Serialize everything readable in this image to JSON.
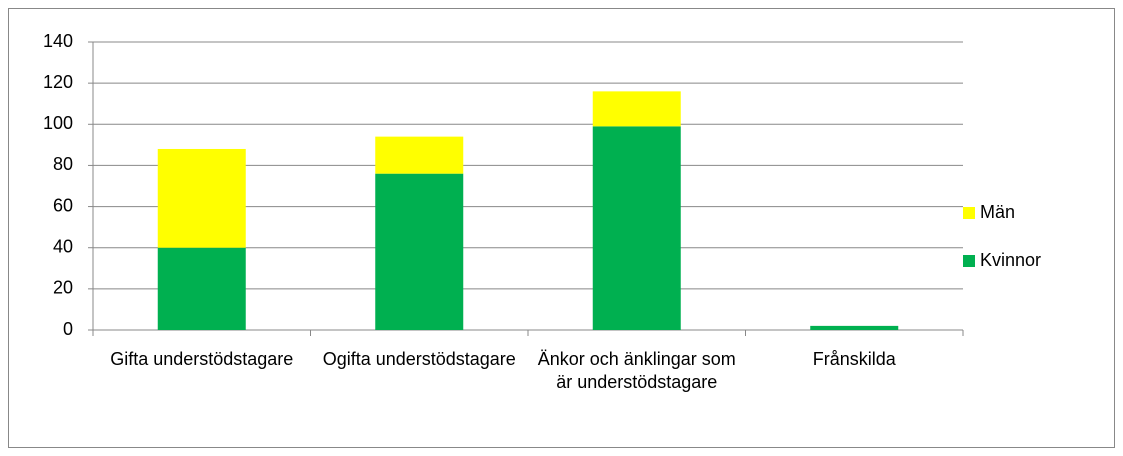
{
  "chart_data": {
    "type": "stacked_bar",
    "categories": [
      "Gifta understödstagare",
      "Ogifta understödstagare",
      "Änkor och änklingar som är understödstagare",
      "Frånskilda"
    ],
    "series": [
      {
        "name": "Kvinnor",
        "color": "#00b050",
        "values": [
          40,
          76,
          99,
          2
        ]
      },
      {
        "name": "Män",
        "color": "#ffff00",
        "values": [
          48,
          18,
          17,
          0
        ]
      }
    ],
    "ylim": [
      0,
      140
    ],
    "yticks": [
      0,
      20,
      40,
      60,
      80,
      100,
      120,
      140
    ],
    "grid": true,
    "legend": "right"
  }
}
